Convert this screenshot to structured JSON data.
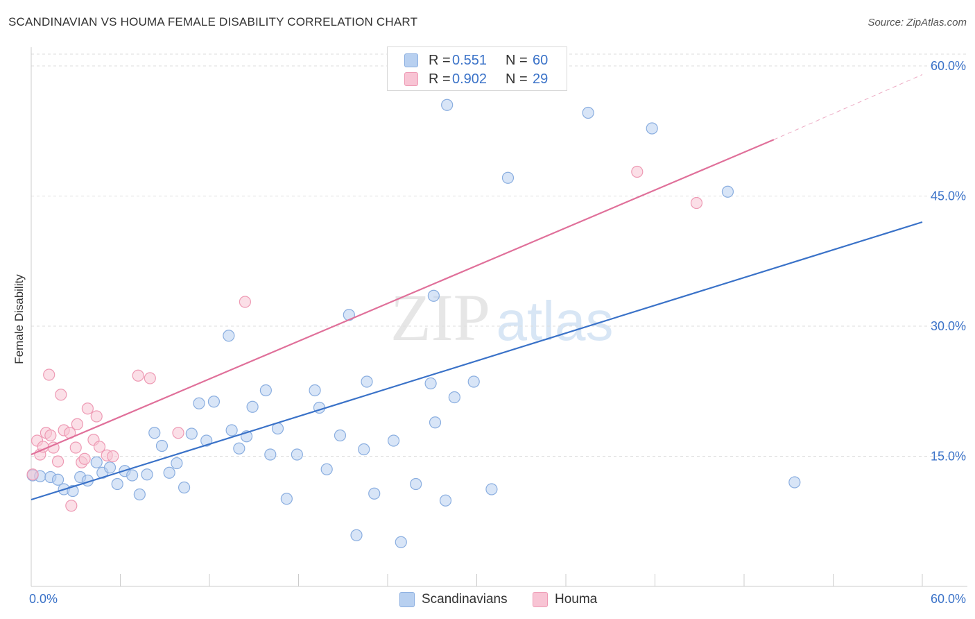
{
  "header": {
    "title": "SCANDINAVIAN VS HOUMA FEMALE DISABILITY CORRELATION CHART",
    "source": "Source: ZipAtlas.com"
  },
  "legend": {
    "series1": {
      "r_label": "R =",
      "r_value": "0.551",
      "n_label": "N =",
      "n_value": "60"
    },
    "series2": {
      "r_label": "R =",
      "r_value": "0.902",
      "n_label": "N =",
      "n_value": "29"
    }
  },
  "bottom_legend": {
    "series1": "Scandinavians",
    "series2": "Houma"
  },
  "watermark": {
    "zip": "ZIP",
    "atlas": "atlas"
  },
  "colors": {
    "blue_fill": "#b8d0f0",
    "blue_stroke": "#8aaee0",
    "blue_line": "#3a72c8",
    "pink_fill": "#f8c4d4",
    "pink_stroke": "#ee9ab4",
    "pink_line": "#e0709a",
    "tick_text": "#3a72c8",
    "grid": "#dddddd"
  },
  "chart_data": {
    "type": "scatter",
    "title": "SCANDINAVIAN VS HOUMA FEMALE DISABILITY CORRELATION CHART",
    "xlabel": "",
    "ylabel": "Female Disability",
    "xlim": [
      0,
      60
    ],
    "ylim": [
      0,
      60
    ],
    "x_tick_labels": [
      "0.0%",
      "60.0%"
    ],
    "y_ticks": [
      15,
      30,
      45,
      60
    ],
    "y_tick_labels": [
      "15.0%",
      "30.0%",
      "45.0%",
      "60.0%"
    ],
    "series": [
      {
        "name": "Scandinavians",
        "r": 0.551,
        "n": 60,
        "trend": {
          "x": [
            0,
            60
          ],
          "y": [
            10.0,
            42.0
          ]
        },
        "points": [
          [
            0.1,
            12.8
          ],
          [
            0.6,
            12.7
          ],
          [
            1.3,
            12.6
          ],
          [
            1.8,
            12.3
          ],
          [
            2.2,
            11.2
          ],
          [
            2.8,
            11.0
          ],
          [
            3.3,
            12.6
          ],
          [
            3.8,
            12.2
          ],
          [
            4.4,
            14.3
          ],
          [
            4.8,
            13.1
          ],
          [
            5.3,
            13.7
          ],
          [
            5.8,
            11.8
          ],
          [
            6.3,
            13.3
          ],
          [
            6.8,
            12.8
          ],
          [
            7.3,
            10.6
          ],
          [
            7.8,
            12.9
          ],
          [
            8.3,
            17.7
          ],
          [
            8.8,
            16.2
          ],
          [
            9.3,
            13.1
          ],
          [
            9.8,
            14.2
          ],
          [
            10.3,
            11.4
          ],
          [
            10.8,
            17.6
          ],
          [
            11.3,
            21.1
          ],
          [
            11.8,
            16.8
          ],
          [
            12.3,
            21.3
          ],
          [
            13.3,
            28.9
          ],
          [
            13.5,
            18.0
          ],
          [
            14.0,
            15.9
          ],
          [
            14.5,
            17.3
          ],
          [
            14.9,
            20.7
          ],
          [
            15.8,
            22.6
          ],
          [
            16.1,
            15.2
          ],
          [
            16.6,
            18.2
          ],
          [
            17.2,
            10.1
          ],
          [
            17.9,
            15.2
          ],
          [
            19.1,
            22.6
          ],
          [
            19.4,
            20.6
          ],
          [
            19.9,
            13.5
          ],
          [
            20.8,
            17.4
          ],
          [
            21.4,
            31.3
          ],
          [
            21.9,
            5.9
          ],
          [
            22.4,
            15.8
          ],
          [
            22.6,
            23.6
          ],
          [
            23.1,
            10.7
          ],
          [
            24.4,
            16.8
          ],
          [
            24.9,
            5.1
          ],
          [
            25.9,
            11.8
          ],
          [
            26.9,
            23.4
          ],
          [
            27.1,
            33.5
          ],
          [
            27.2,
            18.9
          ],
          [
            27.9,
            9.9
          ],
          [
            28.0,
            55.5
          ],
          [
            28.5,
            21.8
          ],
          [
            29.8,
            23.6
          ],
          [
            31.0,
            11.2
          ],
          [
            32.1,
            47.1
          ],
          [
            37.5,
            54.6
          ],
          [
            41.8,
            52.8
          ],
          [
            46.9,
            45.5
          ],
          [
            51.4,
            12.0
          ]
        ]
      },
      {
        "name": "Houma",
        "r": 0.902,
        "n": 29,
        "trend": {
          "x": [
            0,
            50
          ],
          "y": [
            15.2,
            51.5
          ]
        },
        "trend_dashed": {
          "x": [
            50,
            60
          ],
          "y": [
            51.5,
            59.0
          ]
        },
        "points": [
          [
            0.1,
            12.9
          ],
          [
            0.4,
            16.8
          ],
          [
            0.6,
            15.2
          ],
          [
            0.8,
            16.1
          ],
          [
            1.0,
            17.7
          ],
          [
            1.2,
            24.4
          ],
          [
            1.3,
            17.4
          ],
          [
            1.5,
            16.0
          ],
          [
            1.8,
            14.4
          ],
          [
            2.0,
            22.1
          ],
          [
            2.2,
            18.0
          ],
          [
            2.6,
            17.7
          ],
          [
            2.7,
            9.3
          ],
          [
            3.0,
            16.0
          ],
          [
            3.1,
            18.7
          ],
          [
            3.4,
            14.3
          ],
          [
            3.6,
            14.7
          ],
          [
            3.8,
            20.5
          ],
          [
            4.2,
            16.9
          ],
          [
            4.4,
            19.6
          ],
          [
            4.6,
            16.1
          ],
          [
            5.1,
            15.1
          ],
          [
            5.5,
            15.0
          ],
          [
            7.2,
            24.3
          ],
          [
            8.0,
            24.0
          ],
          [
            9.9,
            17.7
          ],
          [
            14.4,
            32.8
          ],
          [
            40.8,
            47.8
          ],
          [
            44.8,
            44.2
          ]
        ]
      }
    ]
  }
}
